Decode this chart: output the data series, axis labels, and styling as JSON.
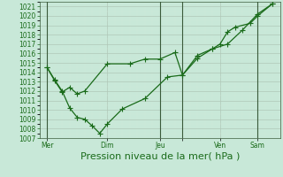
{
  "xlabel": "Pression niveau de la mer( hPa )",
  "background_color": "#c8e8d8",
  "line_color": "#1a6b1a",
  "ylim": [
    1007,
    1021.5
  ],
  "ytick_vals": [
    1007,
    1008,
    1009,
    1010,
    1011,
    1012,
    1013,
    1014,
    1015,
    1016,
    1017,
    1018,
    1019,
    1020,
    1021
  ],
  "xlim": [
    0,
    16
  ],
  "xtick_positions": [
    0.5,
    4.5,
    8,
    9.5,
    12,
    14.5
  ],
  "xtick_labels": [
    "Mer",
    "Dim",
    "Jeu",
    "",
    "Ven",
    "Sam"
  ],
  "vline_positions": [
    0.5,
    8.0,
    9.5,
    14.5
  ],
  "line1_x": [
    0.5,
    1.0,
    1.5,
    2.0,
    2.5,
    3.0,
    3.5,
    4.0,
    4.5,
    5.5,
    7.0,
    8.5,
    9.5,
    10.5,
    11.5,
    12.5,
    13.5,
    14.5,
    15.5
  ],
  "line1_y": [
    1014.5,
    1013.2,
    1012.0,
    1010.2,
    1009.2,
    1009.0,
    1008.3,
    1007.5,
    1008.5,
    1010.1,
    1011.2,
    1013.5,
    1013.7,
    1015.5,
    1016.5,
    1017.0,
    1018.5,
    1020.2,
    1021.3
  ],
  "line2_x": [
    0.5,
    1.0,
    1.5,
    2.0,
    2.5,
    3.0,
    4.5,
    6.0,
    7.0,
    8.0,
    9.0,
    9.5,
    10.5,
    11.5,
    12.0,
    12.5,
    13.0,
    14.0,
    14.5,
    15.5
  ],
  "line2_y": [
    1014.5,
    1013.1,
    1011.9,
    1012.4,
    1011.7,
    1012.0,
    1014.9,
    1014.9,
    1015.4,
    1015.4,
    1016.1,
    1013.7,
    1015.8,
    1016.5,
    1017.0,
    1018.3,
    1018.8,
    1019.2,
    1020.0,
    1021.3
  ],
  "marker": "+",
  "marker_size": 4,
  "linewidth": 0.9,
  "font_color": "#1a6b1a",
  "tick_fontsize": 5.5,
  "xlabel_fontsize": 8,
  "grid_major_color": "#b0c8b8",
  "grid_minor_color": "#d0e8d8"
}
